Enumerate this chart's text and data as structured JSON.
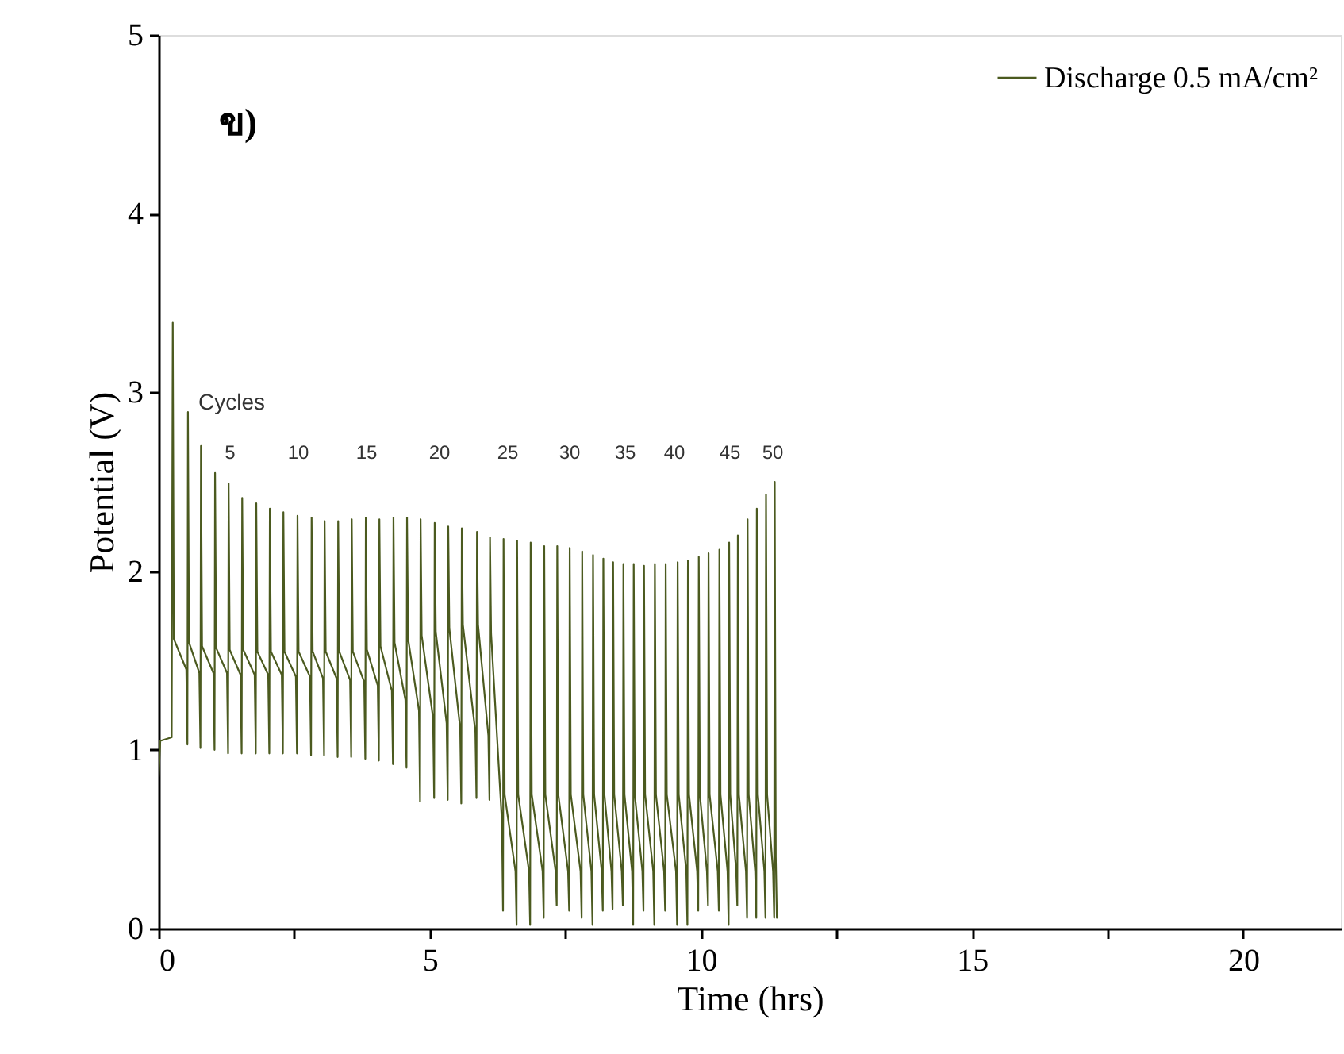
{
  "chart_data": {
    "type": "line",
    "xlabel": "Time (hrs)",
    "ylabel": "Potential (V)",
    "xlim": [
      0,
      21.8
    ],
    "ylim": [
      0,
      5
    ],
    "xticks": [
      0,
      {
        "value": 2.5,
        "label": null
      },
      5,
      {
        "value": 7.5,
        "label": null
      },
      10,
      {
        "value": 12.5,
        "label": null
      },
      15,
      {
        "value": 17.5,
        "label": null
      },
      20
    ],
    "yticks": [
      0,
      1,
      2,
      3,
      4,
      5
    ],
    "legend": "top right",
    "grid": false,
    "annotations": [
      "ข)",
      "Cycles",
      "5",
      "10",
      "15",
      "20",
      "25",
      "30",
      "35",
      "40",
      "45",
      "50"
    ],
    "x": [
      0,
      0.03,
      0.24,
      0.26,
      0.28,
      0.51,
      0.53,
      0.54,
      0.56,
      0.75,
      0.77,
      0.78,
      0.8,
      1.01,
      1.03,
      1.04,
      1.06,
      1.26,
      1.28,
      1.29,
      1.31,
      1.51,
      1.53,
      1.54,
      1.56,
      1.77,
      1.79,
      1.8,
      1.82,
      2.02,
      2.04,
      2.05,
      2.07,
      2.27,
      2.29,
      2.3,
      2.32,
      2.53,
      2.55,
      2.56,
      2.58,
      2.79,
      2.81,
      2.82,
      2.84,
      3.03,
      3.05,
      3.06,
      3.08,
      3.28,
      3.3,
      3.31,
      3.33,
      3.53,
      3.55,
      3.56,
      3.58,
      3.79,
      3.81,
      3.82,
      3.84,
      4.04,
      4.06,
      4.07,
      4.09,
      4.3,
      4.32,
      4.33,
      4.35,
      4.55,
      4.57,
      4.58,
      4.6,
      4.8,
      4.82,
      4.83,
      4.85,
      5.06,
      5.08,
      5.09,
      5.11,
      5.31,
      5.33,
      5.34,
      5.36,
      5.56,
      5.58,
      5.59,
      5.61,
      5.84,
      5.86,
      5.87,
      5.89,
      6.08,
      6.1,
      6.11,
      6.13,
      6.33,
      6.35,
      6.36,
      6.38,
      6.58,
      6.6,
      6.61,
      6.63,
      6.83,
      6.85,
      6.86,
      6.88,
      7.08,
      7.1,
      7.11,
      7.13,
      7.32,
      7.34,
      7.35,
      7.37,
      7.55,
      7.57,
      7.58,
      7.6,
      7.78,
      7.8,
      7.81,
      7.83,
      7.98,
      8.0,
      8.01,
      8.03,
      8.17,
      8.19,
      8.2,
      8.22,
      8.35,
      8.37,
      8.38,
      8.4,
      8.54,
      8.56,
      8.57,
      8.59,
      8.73,
      8.75,
      8.76,
      8.78,
      8.92,
      8.94,
      8.95,
      8.97,
      9.12,
      9.14,
      9.15,
      9.17,
      9.32,
      9.34,
      9.35,
      9.37,
      9.54,
      9.56,
      9.57,
      9.59,
      9.73,
      9.75,
      9.76,
      9.78,
      9.93,
      9.95,
      9.96,
      9.98,
      10.11,
      10.13,
      10.14,
      10.16,
      10.31,
      10.33,
      10.34,
      10.36,
      10.49,
      10.51,
      10.52,
      10.54,
      10.65,
      10.67,
      10.68,
      10.7,
      10.83,
      10.85,
      10.86,
      10.88,
      11.0,
      11.02,
      11.03,
      11.05,
      11.17,
      11.19,
      11.2,
      11.22,
      11.33,
      11.35,
      11.36,
      11.38,
      11.4
    ],
    "series": [
      {
        "name": "Discharge 0.5 mA/cm²",
        "color": "#4b5a1f",
        "values": [
          0.85,
          1.05,
          1.07,
          3.39,
          1.62,
          1.45,
          1.03,
          2.89,
          1.6,
          1.43,
          1.01,
          2.7,
          1.58,
          1.43,
          1.0,
          2.55,
          1.57,
          1.43,
          0.98,
          2.49,
          1.56,
          1.42,
          0.98,
          2.41,
          1.56,
          1.42,
          0.98,
          2.38,
          1.55,
          1.42,
          0.98,
          2.35,
          1.55,
          1.42,
          0.98,
          2.33,
          1.55,
          1.41,
          0.98,
          2.31,
          1.55,
          1.41,
          0.97,
          2.3,
          1.55,
          1.4,
          0.97,
          2.28,
          1.55,
          1.4,
          0.96,
          2.28,
          1.55,
          1.39,
          0.96,
          2.29,
          1.55,
          1.38,
          0.95,
          2.3,
          1.56,
          1.36,
          0.94,
          2.29,
          1.58,
          1.33,
          0.92,
          2.3,
          1.6,
          1.28,
          0.9,
          2.3,
          1.62,
          1.22,
          0.71,
          2.29,
          1.64,
          1.18,
          0.73,
          2.27,
          1.66,
          1.15,
          0.72,
          2.25,
          1.68,
          1.12,
          0.7,
          2.24,
          1.7,
          1.1,
          0.73,
          2.22,
          1.7,
          1.08,
          0.72,
          2.19,
          1.65,
          0.6,
          0.1,
          2.18,
          0.75,
          0.32,
          0.02,
          2.17,
          0.75,
          0.32,
          0.02,
          2.16,
          0.75,
          0.32,
          0.06,
          2.14,
          0.75,
          0.32,
          0.13,
          2.14,
          0.75,
          0.32,
          0.1,
          2.13,
          0.75,
          0.32,
          0.06,
          2.11,
          0.75,
          0.32,
          0.02,
          2.09,
          0.75,
          0.32,
          0.1,
          2.07,
          0.75,
          0.32,
          0.11,
          2.05,
          0.75,
          0.32,
          0.13,
          2.04,
          0.75,
          0.32,
          0.02,
          2.04,
          0.75,
          0.32,
          0.1,
          2.03,
          0.75,
          0.32,
          0.02,
          2.04,
          0.75,
          0.32,
          0.1,
          2.04,
          0.75,
          0.32,
          0.02,
          2.05,
          0.75,
          0.32,
          0.02,
          2.06,
          0.75,
          0.32,
          0.1,
          2.08,
          0.75,
          0.32,
          0.13,
          2.1,
          0.75,
          0.32,
          0.1,
          2.12,
          0.75,
          0.32,
          0.02,
          2.16,
          0.75,
          0.32,
          0.13,
          2.2,
          0.75,
          0.32,
          0.06,
          2.29,
          0.75,
          0.32,
          0.06,
          2.35,
          0.75,
          0.32,
          0.06,
          2.43,
          0.75,
          0.32,
          0.06,
          2.5,
          0.4,
          0.06
        ]
      }
    ]
  }
}
